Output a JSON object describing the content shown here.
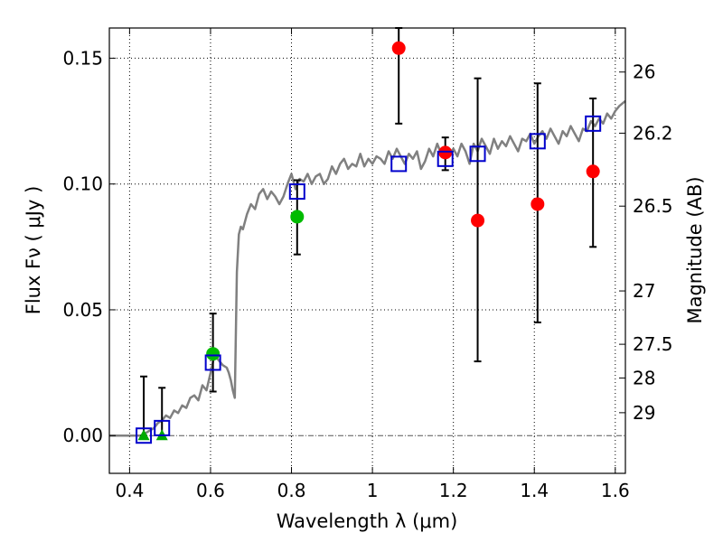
{
  "chart_data": {
    "type": "scatter",
    "xlabel": "Wavelength  λ (μm)",
    "ylabel": "Flux  Fν  ( μJy )",
    "y2label": "Magnitude (AB)",
    "xlim": [
      0.35,
      1.625
    ],
    "ylim": [
      -0.015,
      0.162
    ],
    "grid": true,
    "x_ticks": [
      0.4,
      0.6,
      0.8,
      1.0,
      1.2,
      1.4,
      1.6
    ],
    "x_tick_labels": [
      "0.4",
      "0.6",
      "0.8",
      "1",
      "1.2",
      "1.4",
      "1.6"
    ],
    "y_ticks": [
      0.0,
      0.05,
      0.1,
      0.15
    ],
    "y_tick_labels": [
      "0.00",
      "0.05",
      "0.10",
      "0.15"
    ],
    "magnitude_ticks": [
      {
        "label": "26",
        "flux": 0.1445
      },
      {
        "label": "26.2",
        "flux": 0.1202
      },
      {
        "label": "26.5",
        "flux": 0.0912
      },
      {
        "label": "27",
        "flux": 0.0575
      },
      {
        "label": "27.5",
        "flux": 0.0363
      },
      {
        "label": "28",
        "flux": 0.0229
      },
      {
        "label": "29",
        "flux": 0.0091
      }
    ],
    "series": [
      {
        "name": "model_sed",
        "kind": "line",
        "color": "#808080",
        "x": [
          0.35,
          0.43,
          0.45,
          0.46,
          0.47,
          0.48,
          0.49,
          0.5,
          0.51,
          0.52,
          0.53,
          0.54,
          0.55,
          0.56,
          0.57,
          0.58,
          0.59,
          0.6,
          0.61,
          0.62,
          0.63,
          0.64,
          0.645,
          0.65,
          0.655,
          0.66,
          0.665,
          0.67,
          0.675,
          0.68,
          0.69,
          0.7,
          0.71,
          0.72,
          0.73,
          0.74,
          0.75,
          0.76,
          0.77,
          0.78,
          0.79,
          0.8,
          0.81,
          0.82,
          0.83,
          0.84,
          0.85,
          0.86,
          0.87,
          0.88,
          0.89,
          0.9,
          0.91,
          0.92,
          0.93,
          0.94,
          0.95,
          0.96,
          0.97,
          0.98,
          0.99,
          1.0,
          1.01,
          1.02,
          1.03,
          1.04,
          1.05,
          1.06,
          1.07,
          1.08,
          1.09,
          1.1,
          1.11,
          1.12,
          1.13,
          1.14,
          1.15,
          1.16,
          1.17,
          1.18,
          1.19,
          1.2,
          1.21,
          1.22,
          1.23,
          1.24,
          1.25,
          1.26,
          1.27,
          1.28,
          1.29,
          1.3,
          1.31,
          1.32,
          1.33,
          1.34,
          1.35,
          1.36,
          1.37,
          1.38,
          1.39,
          1.4,
          1.41,
          1.42,
          1.43,
          1.44,
          1.45,
          1.46,
          1.47,
          1.48,
          1.49,
          1.5,
          1.51,
          1.52,
          1.53,
          1.54,
          1.55,
          1.56,
          1.57,
          1.58,
          1.59,
          1.6,
          1.61,
          1.625
        ],
        "y": [
          0.0,
          0.0,
          0.002,
          0.003,
          0.005,
          0.006,
          0.008,
          0.007,
          0.01,
          0.009,
          0.012,
          0.011,
          0.015,
          0.016,
          0.014,
          0.02,
          0.018,
          0.025,
          0.032,
          0.03,
          0.028,
          0.027,
          0.025,
          0.022,
          0.018,
          0.015,
          0.065,
          0.08,
          0.083,
          0.082,
          0.088,
          0.092,
          0.09,
          0.096,
          0.098,
          0.094,
          0.097,
          0.095,
          0.092,
          0.095,
          0.1,
          0.104,
          0.098,
          0.102,
          0.101,
          0.104,
          0.1,
          0.103,
          0.104,
          0.1,
          0.102,
          0.107,
          0.104,
          0.108,
          0.11,
          0.106,
          0.108,
          0.107,
          0.112,
          0.107,
          0.11,
          0.108,
          0.111,
          0.11,
          0.108,
          0.113,
          0.11,
          0.114,
          0.111,
          0.108,
          0.112,
          0.11,
          0.113,
          0.106,
          0.109,
          0.114,
          0.111,
          0.116,
          0.112,
          0.11,
          0.112,
          0.114,
          0.111,
          0.116,
          0.113,
          0.108,
          0.116,
          0.113,
          0.118,
          0.115,
          0.112,
          0.118,
          0.114,
          0.117,
          0.115,
          0.119,
          0.116,
          0.113,
          0.118,
          0.117,
          0.12,
          0.116,
          0.119,
          0.121,
          0.118,
          0.122,
          0.119,
          0.116,
          0.121,
          0.119,
          0.123,
          0.12,
          0.117,
          0.122,
          0.121,
          0.125,
          0.123,
          0.126,
          0.124,
          0.128,
          0.126,
          0.129,
          0.131,
          0.133
        ]
      },
      {
        "name": "model_photometry",
        "kind": "open_square",
        "color": "#0000cc",
        "x": [
          0.435,
          0.48,
          0.606,
          0.814,
          1.065,
          1.18,
          1.26,
          1.408,
          1.545
        ],
        "y": [
          0.0,
          0.003,
          0.029,
          0.097,
          0.108,
          0.11,
          0.112,
          0.117,
          0.124
        ]
      },
      {
        "name": "upper_limits",
        "kind": "triangle",
        "color": "#00aa00",
        "x": [
          0.435,
          0.48
        ],
        "y": [
          0.0,
          0.0
        ],
        "yerr_high": [
          0.0235,
          0.019
        ],
        "yerr_low": [
          0.0,
          0.0
        ]
      },
      {
        "name": "observed_optical",
        "kind": "circle",
        "color": "#00bb00",
        "x": [
          0.606,
          0.814
        ],
        "y": [
          0.0325,
          0.087
        ],
        "yerr_high": [
          0.0485,
          0.1015
        ],
        "yerr_low": [
          0.0175,
          0.072
        ]
      },
      {
        "name": "observed_nir",
        "kind": "circle",
        "color": "#ff0000",
        "x": [
          1.065,
          1.18,
          1.26,
          1.408,
          1.545
        ],
        "y": [
          0.154,
          0.1125,
          0.0855,
          0.092,
          0.105
        ],
        "yerr_high": [
          0.162,
          0.1185,
          0.142,
          0.14,
          0.134
        ],
        "yerr_low": [
          0.124,
          0.1055,
          0.0295,
          0.045,
          0.075
        ]
      }
    ]
  }
}
